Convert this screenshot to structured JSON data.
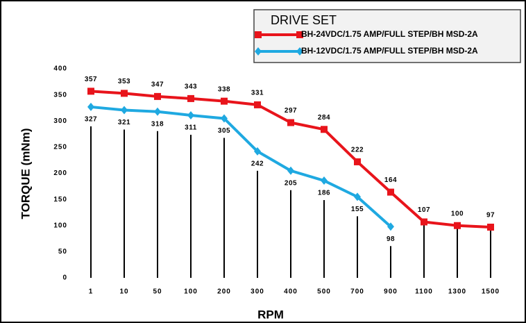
{
  "chart_data": {
    "type": "line",
    "legend_title": "DRIVE SET",
    "x_label": "RPM",
    "y_label": "TORQUE (mNm)",
    "categories": [
      "1",
      "10",
      "50",
      "100",
      "200",
      "300",
      "400",
      "500",
      "700",
      "900",
      "1100",
      "1300",
      "1500"
    ],
    "series": [
      {
        "name": "BH-24VDC/1.75 AMP/FULL STEP/BH MSD-2A",
        "color": "#e8141b",
        "marker": "square",
        "values": [
          357,
          353,
          347,
          343,
          338,
          331,
          297,
          284,
          222,
          164,
          107,
          100,
          97
        ]
      },
      {
        "name": "BH-12VDC/1.75 AMP/FULL STEP/BH MSD-2A",
        "color": "#1fa9e1",
        "marker": "diamond",
        "values": [
          327,
          321,
          318,
          311,
          305,
          242,
          205,
          186,
          155,
          98,
          null,
          null,
          null
        ]
      }
    ],
    "ylim": [
      0,
      400
    ],
    "yticks": [
      0,
      50,
      100,
      150,
      200,
      250,
      300,
      350,
      400
    ],
    "grid": false,
    "legend": "top right"
  }
}
